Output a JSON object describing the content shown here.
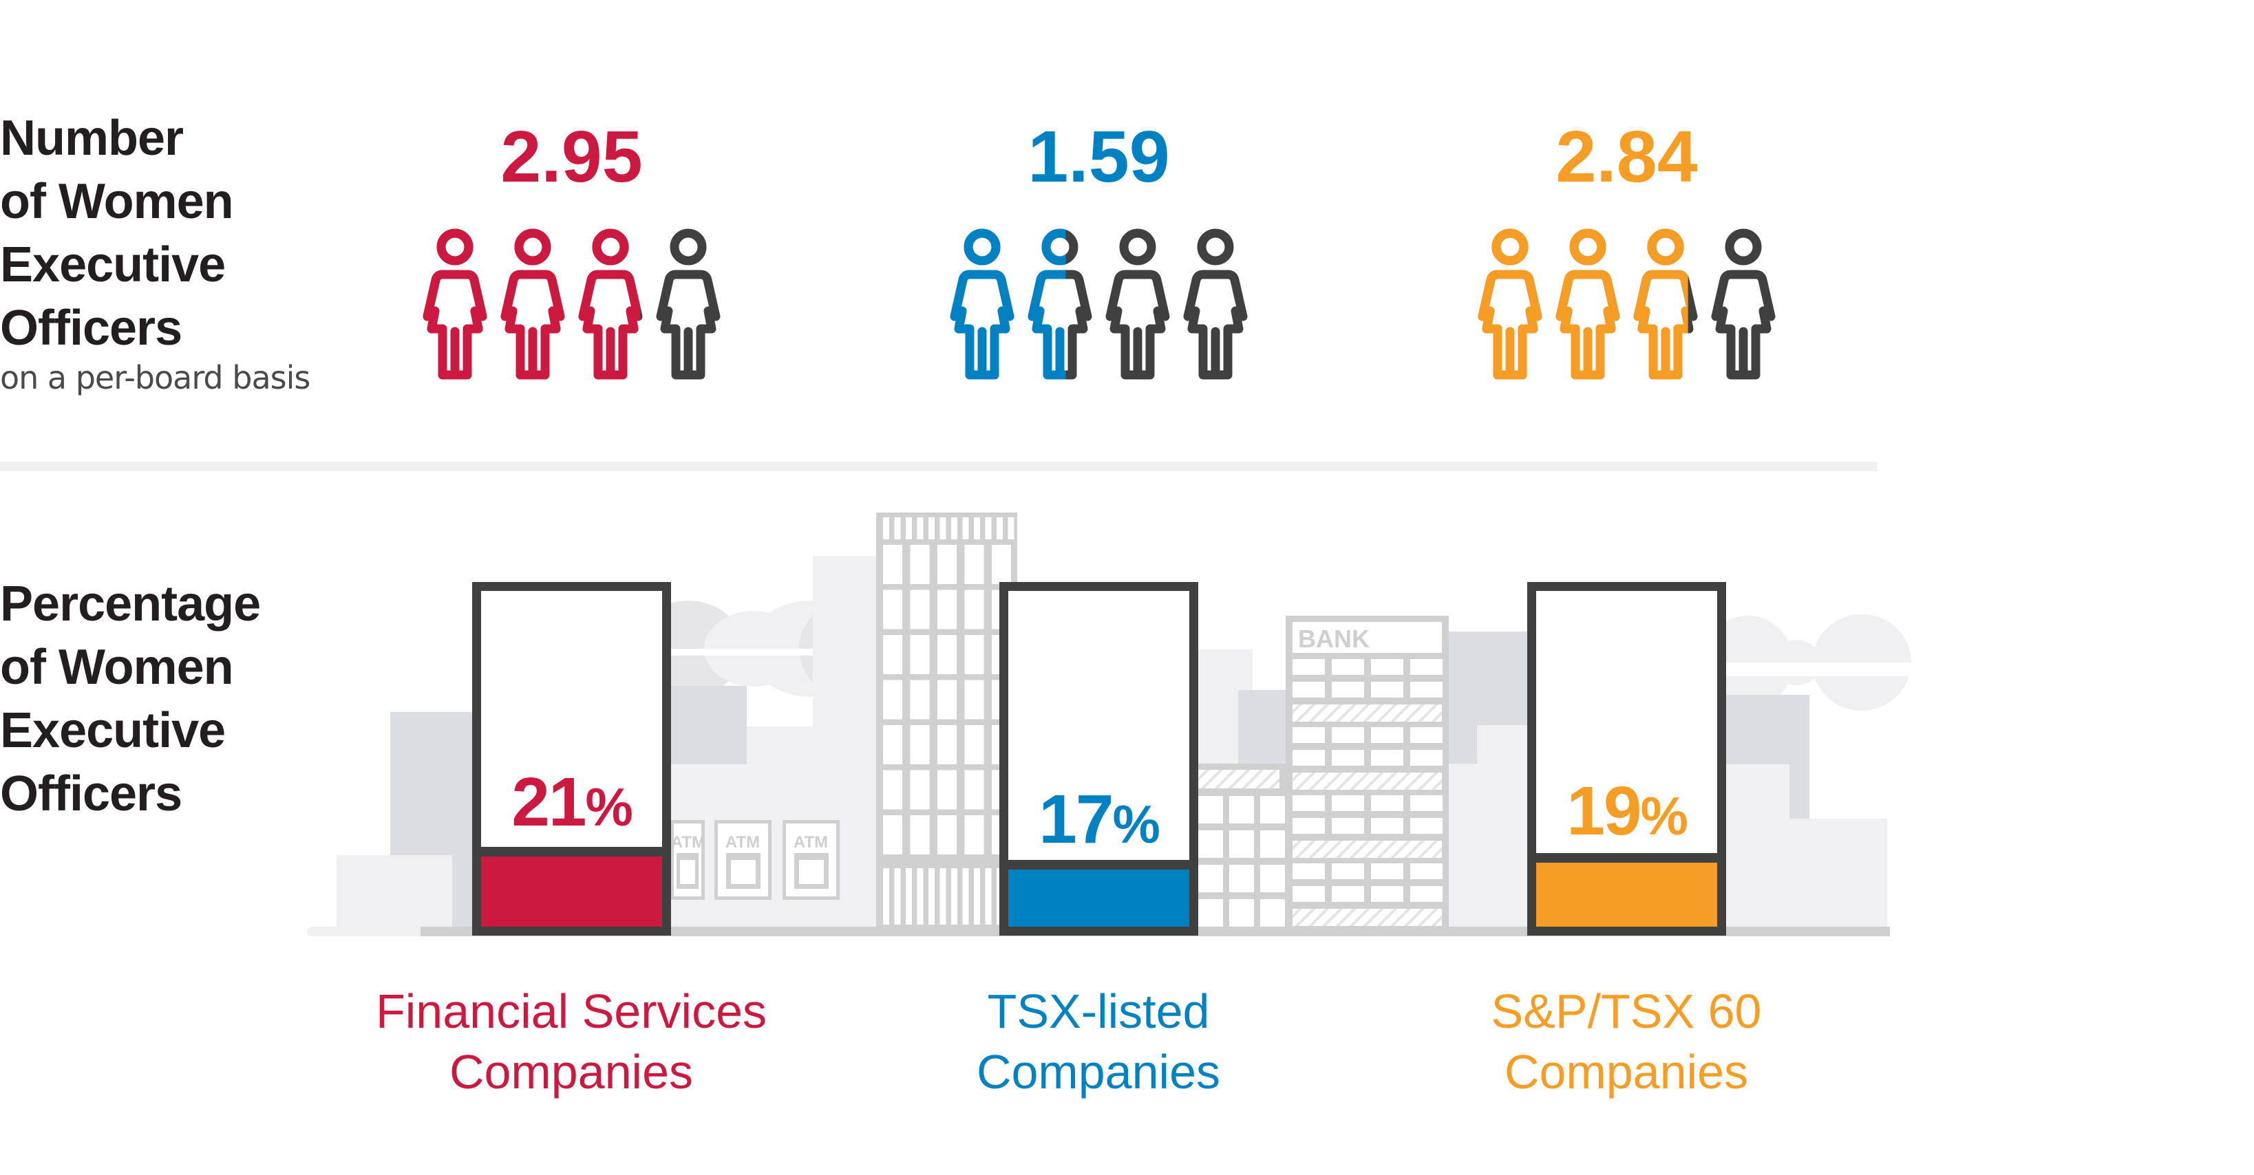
{
  "colors": {
    "financial": "#CC1940",
    "tsx": "#0081C1",
    "sp": "#F59D25",
    "inactive_icon": "#404040",
    "text": "#231F20",
    "frame": "#404040",
    "city_dark": "#DCDDE0",
    "city_light": "#F0F0F2",
    "city_line": "#D0D0D0"
  },
  "top_section": {
    "title_lines": [
      "Number",
      "of Women",
      "Executive",
      "Officers"
    ],
    "subtitle": "on a per-board basis",
    "icon_name": "woman-icon",
    "icons_per_group": 4
  },
  "bottom_section": {
    "title_lines": [
      "Percentage",
      "of Women",
      "Executive",
      "Officers"
    ]
  },
  "city": {
    "bank_sign": "BANK",
    "atm_sign": "ATM"
  },
  "chart_data": [
    {
      "type": "pictogram",
      "title": "Number of Women Executive Officers on a per-board basis",
      "categories": [
        "Financial Services Companies",
        "TSX-listed Companies",
        "S&P/TSX 60 Companies"
      ],
      "values": [
        2.95,
        1.59,
        2.84
      ],
      "value_labels": [
        "2.95",
        "1.59",
        "2.84"
      ],
      "icon_scale_max": 4
    },
    {
      "type": "bar",
      "title": "Percentage of Women Executive Officers",
      "categories": [
        "Financial Services Companies",
        "TSX-listed Companies",
        "S&P/TSX 60 Companies"
      ],
      "values": [
        21,
        17,
        19
      ],
      "value_labels": [
        "21",
        "17",
        "19"
      ],
      "unit": "%",
      "ylim": [
        0,
        100
      ]
    }
  ],
  "groups": [
    {
      "key": "financial",
      "number": "2.95",
      "number_value": 2.95,
      "percent": "21",
      "percent_value": 21,
      "percent_sign": "%",
      "label_lines": [
        "Financial Services",
        "Companies"
      ]
    },
    {
      "key": "tsx",
      "number": "1.59",
      "number_value": 1.59,
      "percent": "17",
      "percent_value": 17,
      "percent_sign": "%",
      "label_lines": [
        "TSX-listed",
        "Companies"
      ]
    },
    {
      "key": "sp",
      "number": "2.84",
      "number_value": 2.84,
      "percent": "19",
      "percent_value": 19,
      "percent_sign": "%",
      "label_lines": [
        "S&P/TSX 60",
        "Companies"
      ]
    }
  ]
}
